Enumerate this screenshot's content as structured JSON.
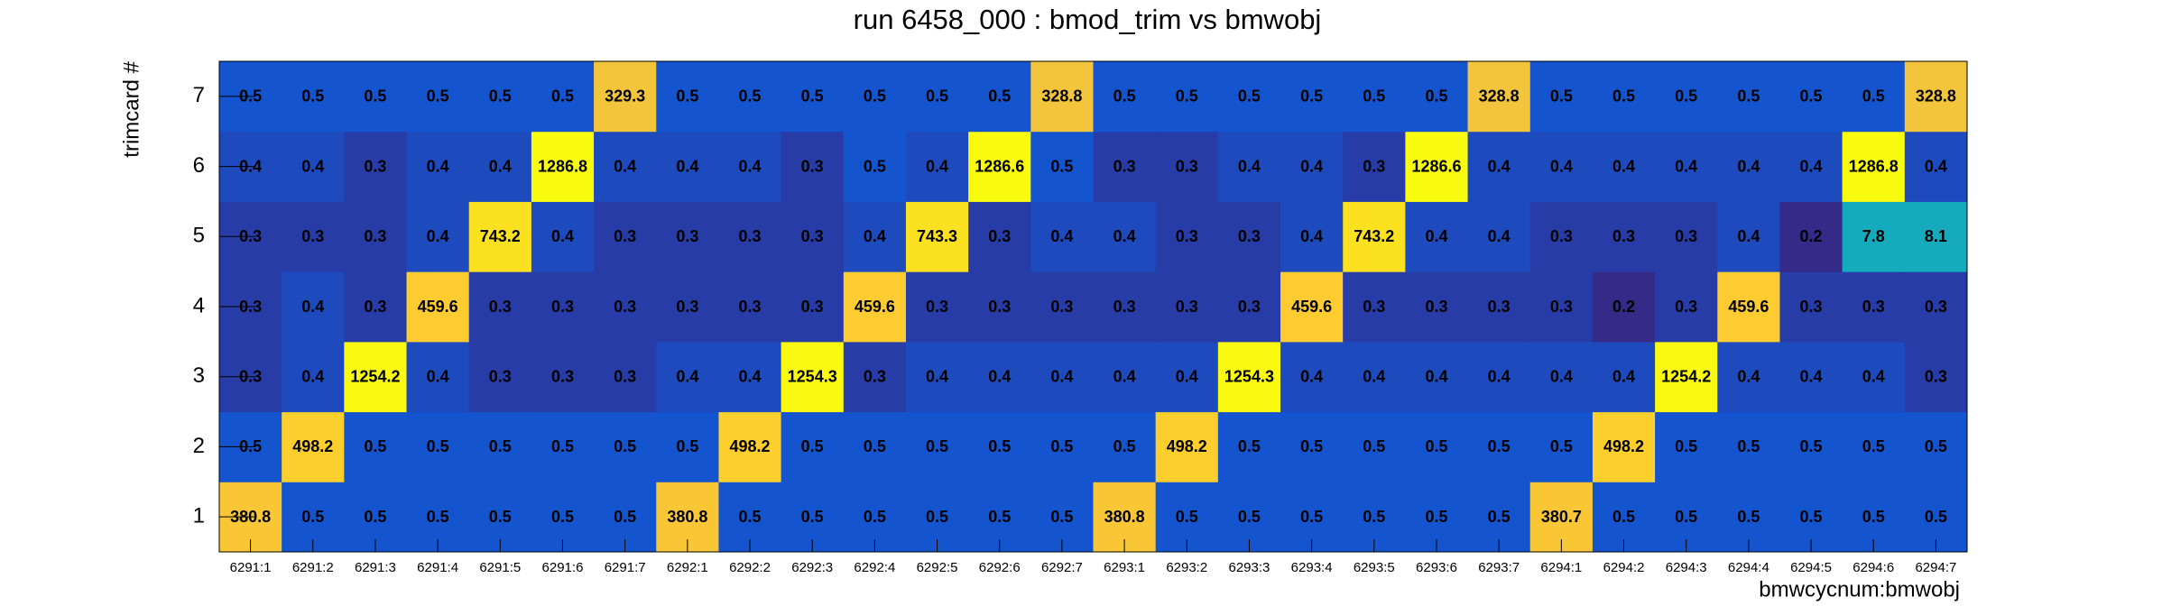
{
  "chart_data": {
    "type": "heatmap",
    "title": "run 6458_000 : bmod_trim vs bmwobj",
    "x_label": "bmwcycnum:bmwobj",
    "y_label": "trimcard #",
    "categories": [
      "6291:1",
      "6291:2",
      "6291:3",
      "6291:4",
      "6291:5",
      "6291:6",
      "6291:7",
      "6292:1",
      "6292:2",
      "6292:3",
      "6292:4",
      "6292:5",
      "6292:6",
      "6292:7",
      "6293:1",
      "6293:2",
      "6293:3",
      "6293:4",
      "6293:5",
      "6293:6",
      "6293:7",
      "6294:1",
      "6294:2",
      "6294:3",
      "6294:4",
      "6294:5",
      "6294:6",
      "6294:7"
    ],
    "y_categories": [
      "1",
      "2",
      "3",
      "4",
      "5",
      "6",
      "7"
    ],
    "values": [
      [
        380.8,
        0.5,
        0.5,
        0.5,
        0.5,
        0.5,
        0.5,
        380.8,
        0.5,
        0.5,
        0.5,
        0.5,
        0.5,
        0.5,
        380.8,
        0.5,
        0.5,
        0.5,
        0.5,
        0.5,
        0.5,
        380.7,
        0.5,
        0.5,
        0.5,
        0.5,
        0.5,
        0.5
      ],
      [
        0.5,
        498.2,
        0.5,
        0.5,
        0.5,
        0.5,
        0.5,
        0.5,
        498.2,
        0.5,
        0.5,
        0.5,
        0.5,
        0.5,
        0.5,
        498.2,
        0.5,
        0.5,
        0.5,
        0.5,
        0.5,
        0.5,
        498.2,
        0.5,
        0.5,
        0.5,
        0.5,
        0.5
      ],
      [
        0.3,
        0.4,
        1254.2,
        0.4,
        0.3,
        0.3,
        0.3,
        0.4,
        0.4,
        1254.3,
        0.3,
        0.4,
        0.4,
        0.4,
        0.4,
        0.4,
        1254.3,
        0.4,
        0.4,
        0.4,
        0.4,
        0.4,
        0.4,
        1254.2,
        0.4,
        0.4,
        0.4,
        0.3
      ],
      [
        0.3,
        0.4,
        0.3,
        459.6,
        0.3,
        0.3,
        0.3,
        0.3,
        0.3,
        0.3,
        459.6,
        0.3,
        0.3,
        0.3,
        0.3,
        0.3,
        0.3,
        459.6,
        0.3,
        0.3,
        0.3,
        0.3,
        0.2,
        0.3,
        459.6,
        0.3,
        0.3,
        0.3
      ],
      [
        0.3,
        0.3,
        0.3,
        0.4,
        743.2,
        0.4,
        0.3,
        0.3,
        0.3,
        0.3,
        0.4,
        743.3,
        0.3,
        0.4,
        0.4,
        0.3,
        0.3,
        0.4,
        743.2,
        0.4,
        0.4,
        0.3,
        0.3,
        0.3,
        0.4,
        0.2,
        7.8,
        8.1
      ],
      [
        0.4,
        0.4,
        0.3,
        0.4,
        0.4,
        1286.8,
        0.4,
        0.4,
        0.4,
        0.3,
        0.5,
        0.4,
        1286.6,
        0.5,
        0.3,
        0.3,
        0.4,
        0.4,
        0.3,
        1286.6,
        0.4,
        0.4,
        0.4,
        0.4,
        0.4,
        0.4,
        1286.8,
        0.4
      ],
      [
        0.5,
        0.5,
        0.5,
        0.5,
        0.5,
        0.5,
        329.3,
        0.5,
        0.5,
        0.5,
        0.5,
        0.5,
        0.5,
        328.8,
        0.5,
        0.5,
        0.5,
        0.5,
        0.5,
        0.5,
        328.8,
        0.5,
        0.5,
        0.5,
        0.5,
        0.5,
        0.5,
        328.8
      ]
    ],
    "zlog": true,
    "palette": [
      "#352a87",
      "#0f5cdd",
      "#1481d6",
      "#06a4ca",
      "#2eb7a4",
      "#87bf77",
      "#d1bb59",
      "#fec832",
      "#f9fb0e"
    ]
  }
}
